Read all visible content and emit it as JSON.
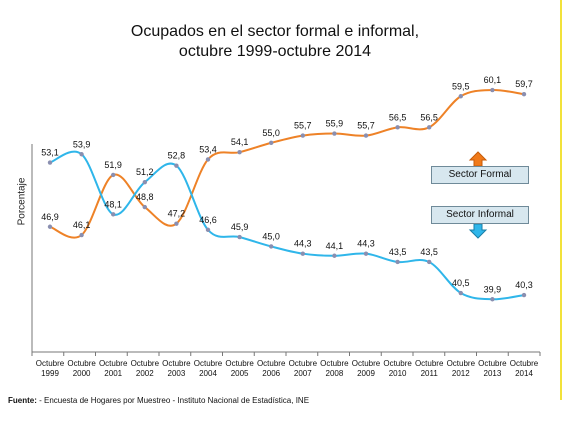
{
  "chart_data": {
    "type": "line",
    "title": [
      "Ocupados en el sector formal e informal,",
      "octubre 1999-octubre 2014"
    ],
    "ylabel": "Porcentaje",
    "categories": [
      [
        "Octubre",
        "1999"
      ],
      [
        "Octubre",
        "2000"
      ],
      [
        "Octubre",
        "2001"
      ],
      [
        "Octubre",
        "2002"
      ],
      [
        "Octubre",
        "2003"
      ],
      [
        "Octubre",
        "2004"
      ],
      [
        "Octubre",
        "2005"
      ],
      [
        "Octubre",
        "2006"
      ],
      [
        "Octubre",
        "2007"
      ],
      [
        "Octubre",
        "2008"
      ],
      [
        "Octubre",
        "2009"
      ],
      [
        "Octubre",
        "2010"
      ],
      [
        "Octubre",
        "2011"
      ],
      [
        "Octubre",
        "2012"
      ],
      [
        "Octubre",
        "2013"
      ],
      [
        "Octubre",
        "2014"
      ]
    ],
    "ylim": [
      35,
      63
    ],
    "grid": false,
    "series": [
      {
        "name": "Sector Formal",
        "color": "#ee8227",
        "values": [
          46.9,
          46.1,
          51.9,
          48.8,
          47.2,
          53.4,
          54.1,
          55.0,
          55.7,
          55.9,
          55.7,
          56.5,
          56.5,
          59.5,
          60.1,
          59.7
        ],
        "labels": [
          "46,9",
          "46,1",
          "51,9",
          "48,8",
          "47,2",
          "53,4",
          "54,1",
          "55,0",
          "55,7",
          "55,9",
          "55,7",
          "56,5",
          "56,5",
          "59,5",
          "60,1",
          "59,7"
        ]
      },
      {
        "name": "Sector Informal",
        "color": "#2fb6ea",
        "values": [
          53.1,
          53.9,
          48.1,
          51.2,
          52.8,
          46.6,
          45.9,
          45.0,
          44.3,
          44.1,
          44.3,
          43.5,
          43.5,
          40.5,
          39.9,
          40.3
        ],
        "labels": [
          "53,1",
          "53,9",
          "48,1",
          "51,2",
          "52,8",
          "46,6",
          "45,9",
          "45,0",
          "44,3",
          "44,1",
          "44,3",
          "43,5",
          "43,5",
          "40,5",
          "39,9",
          "40,3"
        ]
      }
    ],
    "legend": [
      "Sector Formal",
      "Sector Informal"
    ]
  },
  "footer": {
    "label": "Fuente:",
    "text": " - Encuesta de Hogares por Muestreo  - Instituto Nacional de Estadística, INE"
  }
}
